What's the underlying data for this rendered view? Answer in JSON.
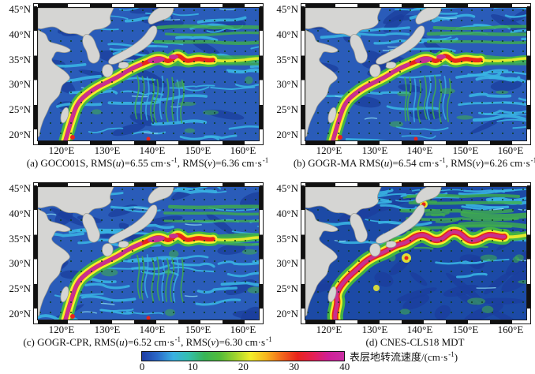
{
  "axes": {
    "lat_ticks": [
      "45°N",
      "40°N",
      "35°N",
      "30°N",
      "25°N",
      "20°N"
    ],
    "lon_ticks": [
      "120°E",
      "130°E",
      "140°E",
      "150°E",
      "160°E"
    ]
  },
  "panels": [
    {
      "id": "a",
      "model": "GOCO01S",
      "caption_parts": [
        [
          "(a) GOCO01S, RMS(",
          "n"
        ],
        [
          "u",
          "i"
        ],
        [
          ")=6.55 cm·s",
          "n"
        ],
        [
          "-1",
          "sup"
        ],
        [
          ", RMS(",
          "n"
        ],
        [
          "v",
          "i"
        ],
        [
          ")=6.36 cm·s",
          "n"
        ],
        [
          "-1",
          "sup"
        ]
      ]
    },
    {
      "id": "b",
      "model": "GOGR-MA",
      "caption_parts": [
        [
          "(b) GOGR-MA RMS(",
          "n"
        ],
        [
          "u",
          "i"
        ],
        [
          ")=6.54 cm·s",
          "n"
        ],
        [
          "-1",
          "sup"
        ],
        [
          ", RMS(",
          "n"
        ],
        [
          "v",
          "i"
        ],
        [
          ")=6.26 cm·s",
          "n"
        ],
        [
          "-1",
          "sup"
        ]
      ]
    },
    {
      "id": "c",
      "model": "GOGR-CPR",
      "caption_parts": [
        [
          "(c) GOGR-CPR, RMS(",
          "n"
        ],
        [
          "u",
          "i"
        ],
        [
          ")=6.52 cm·s",
          "n"
        ],
        [
          "-1",
          "sup"
        ],
        [
          ", RMS(",
          "n"
        ],
        [
          "v",
          "i"
        ],
        [
          ")=6.30 cm·s",
          "n"
        ],
        [
          "-1",
          "sup"
        ]
      ]
    },
    {
      "id": "d",
      "model": "CNES-CLS18 MDT",
      "caption_parts": [
        [
          "(d) CNES-CLS18 MDT",
          "n"
        ]
      ]
    }
  ],
  "colorbar": {
    "ticks": [
      "0",
      "10",
      "20",
      "30",
      "40"
    ],
    "label_parts": [
      [
        "表层地转流速度/(cm·s",
        "n"
      ],
      [
        "-1",
        "sup"
      ],
      [
        ")",
        "n"
      ]
    ],
    "gradient": [
      "#1f3da3",
      "#2a6ac9",
      "#39b0e3",
      "#33bfae",
      "#38b457",
      "#52bc3a",
      "#9ed32e",
      "#f2ee2a",
      "#f8b51e",
      "#f2681b",
      "#e9241c",
      "#e42052",
      "#cf2097",
      "#c92fa3"
    ]
  },
  "map_colors": {
    "ocean": "#2a5cb9",
    "ocean_d": "#1c4aa6",
    "deep_blue": "#1b3e9c",
    "swirl_cyan": "#38b2e2",
    "light_cyan": "#86d7ef",
    "streak_green": "#3fae4b",
    "band_green": "#46b83c",
    "band_yellow": "#f5ee2a",
    "band_red": "#e8251d",
    "band_magenta": "#c9308f",
    "land": "#d5d5d3",
    "coast": "#97978f",
    "dot": "#0d3b1e"
  },
  "chart_data": {
    "type": "heatmap",
    "subtype": "geographic current-speed maps with vector dots, 4 panels",
    "quantity_label": "表层地转流速度/(cm·s⁻¹)",
    "quantity_label_translation": "surface geostrophic current speed (cm·s⁻¹)",
    "panels": [
      {
        "label": "(a)",
        "model": "GOCO01S",
        "rms_u_cm_s": 6.55,
        "rms_v_cm_s": 6.36
      },
      {
        "label": "(b)",
        "model": "GOGR-MA",
        "rms_u_cm_s": 6.54,
        "rms_v_cm_s": 6.26
      },
      {
        "label": "(c)",
        "model": "GOGR-CPR",
        "rms_u_cm_s": 6.52,
        "rms_v_cm_s": 6.3
      },
      {
        "label": "(d)",
        "model": "CNES-CLS18 MDT",
        "rms_u_cm_s": null,
        "rms_v_cm_s": null
      }
    ],
    "x_axis": {
      "ticks": [
        "120°E",
        "130°E",
        "140°E",
        "150°E",
        "160°E"
      ],
      "approx_range": [
        "115°E",
        "165°E"
      ]
    },
    "y_axis": {
      "ticks": [
        "45°N",
        "40°N",
        "35°N",
        "30°N",
        "25°N",
        "20°N"
      ],
      "approx_range": [
        "19°N",
        "45.5°N"
      ]
    },
    "colorbar": {
      "range": [
        0,
        40
      ],
      "ticks": [
        0,
        10,
        20,
        30,
        40
      ],
      "orientation": "horizontal",
      "position": "bottom-center"
    },
    "notable_features": "High-speed Kuroshio current band (red/magenta, >30 cm/s) from east of Taiwan along Japan's south coast extending east near 35°N; land shown gray; grid of velocity vector dots over ocean"
  }
}
